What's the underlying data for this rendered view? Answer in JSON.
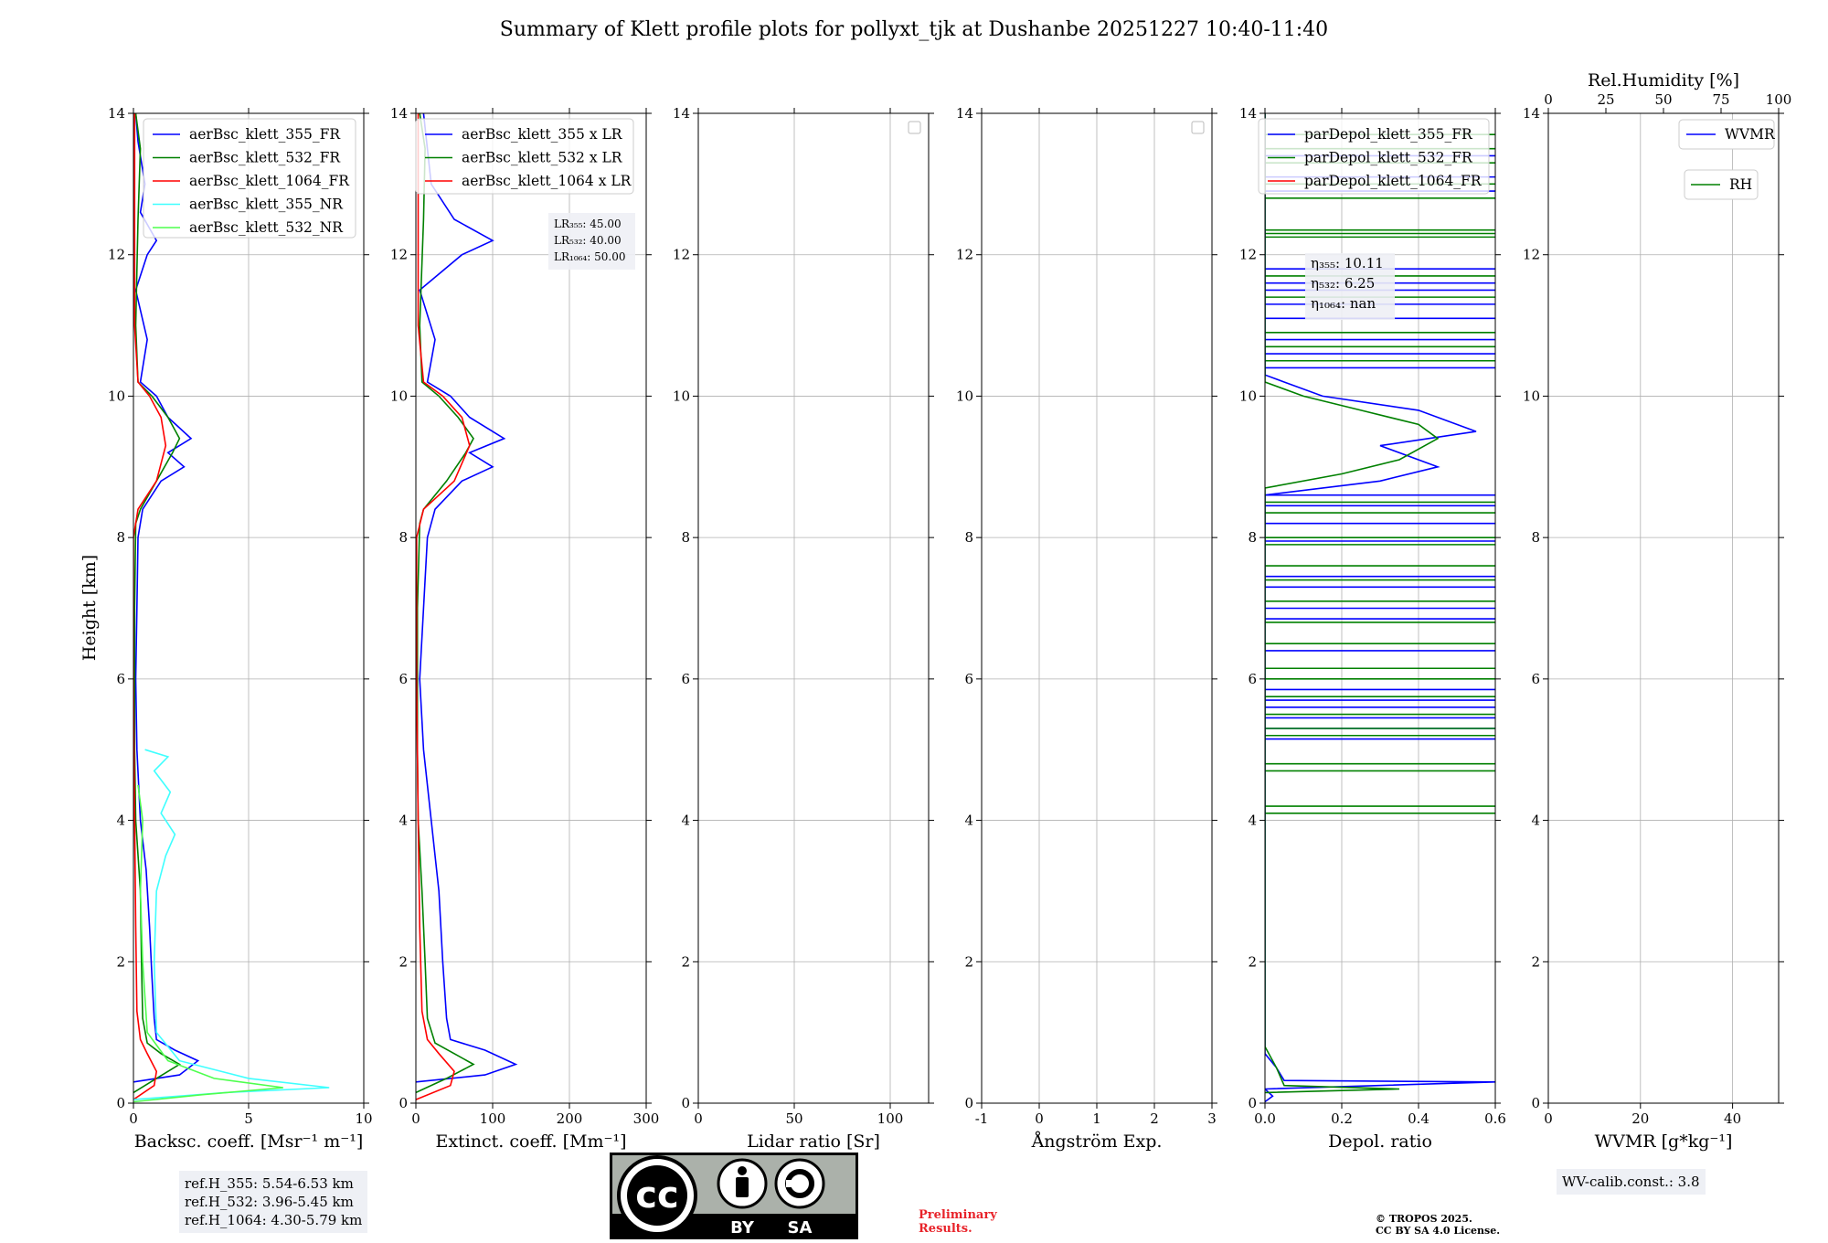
{
  "figure": {
    "title": "Summary of Klett profile plots for pollyxt_tjk at Dushanbe 20251227 10:40-11:40",
    "ylabel": "Height [km]",
    "ref_heights": [
      "ref.H_355: 5.54-6.53 km",
      "ref.H_532: 3.96-5.45 km",
      "ref.H_1064: 4.30-5.79 km"
    ],
    "wv_calib": "WV-calib.const.: 3.8",
    "preliminary": [
      "Preliminary",
      "Results."
    ],
    "copyright": [
      "© TROPOS 2025.",
      "CC BY SA 4.0 License."
    ],
    "license_badge": {
      "cc": "cc",
      "by": "BY",
      "sa": "SA"
    }
  },
  "colors": {
    "b355": "#0000ff",
    "g532": "#008000",
    "r1064": "#ff0000",
    "nr355": "#3fffff",
    "nr532": "#4dff4d",
    "grid": "#b0b0b0"
  },
  "chart_data": [
    {
      "type": "line",
      "title": "",
      "xlabel": "Backsc. coeff. [Msr⁻¹ m⁻¹]",
      "ylabel": "Height [km]",
      "xlim": [
        0,
        10
      ],
      "ylim": [
        0,
        14
      ],
      "xticks": [
        0,
        5,
        10
      ],
      "yticks": [
        0,
        2,
        4,
        6,
        8,
        10,
        12,
        14
      ],
      "legend": [
        "aerBsc_klett_355_FR",
        "aerBsc_klett_532_FR",
        "aerBsc_klett_1064_FR",
        "aerBsc_klett_355_NR",
        "aerBsc_klett_532_NR"
      ],
      "series": [
        {
          "name": "aerBsc_klett_355_FR",
          "color": "b355",
          "points": [
            [
              0,
              0.3
            ],
            [
              2.0,
              0.4
            ],
            [
              2.8,
              0.6
            ],
            [
              1.8,
              0.75
            ],
            [
              1.0,
              0.9
            ],
            [
              0.9,
              1.2
            ],
            [
              0.8,
              1.8
            ],
            [
              0.7,
              2.5
            ],
            [
              0.55,
              3.3
            ],
            [
              0.3,
              4.0
            ],
            [
              0.15,
              5.0
            ],
            [
              0.1,
              6.0
            ],
            [
              0.15,
              7.0
            ],
            [
              0.2,
              8.0
            ],
            [
              0.4,
              8.4
            ],
            [
              1.2,
              8.8
            ],
            [
              2.2,
              9.0
            ],
            [
              1.5,
              9.2
            ],
            [
              2.5,
              9.4
            ],
            [
              1.5,
              9.7
            ],
            [
              1.0,
              10.0
            ],
            [
              0.3,
              10.2
            ],
            [
              0.6,
              10.8
            ],
            [
              0.1,
              11.5
            ],
            [
              0.6,
              12.0
            ],
            [
              1.0,
              12.2
            ],
            [
              0.3,
              12.6
            ],
            [
              0.5,
              13.0
            ],
            [
              0.2,
              13.6
            ],
            [
              0.1,
              14.0
            ]
          ]
        },
        {
          "name": "aerBsc_klett_532_FR",
          "color": "g532",
          "points": [
            [
              0,
              0.15
            ],
            [
              1.0,
              0.35
            ],
            [
              2.0,
              0.55
            ],
            [
              1.2,
              0.7
            ],
            [
              0.6,
              0.85
            ],
            [
              0.4,
              1.2
            ],
            [
              0.35,
              2.0
            ],
            [
              0.3,
              3.0
            ],
            [
              0.1,
              4.0
            ],
            [
              0.05,
              5.0
            ],
            [
              0.05,
              7.0
            ],
            [
              0.1,
              8.2
            ],
            [
              0.3,
              8.4
            ],
            [
              1.0,
              8.8
            ],
            [
              1.7,
              9.2
            ],
            [
              2.0,
              9.4
            ],
            [
              1.5,
              9.7
            ],
            [
              0.8,
              10.0
            ],
            [
              0.2,
              10.2
            ],
            [
              0.1,
              11.0
            ],
            [
              0.2,
              12.5
            ],
            [
              0.3,
              13.5
            ],
            [
              0.1,
              14.0
            ]
          ]
        },
        {
          "name": "aerBsc_klett_1064_FR",
          "color": "r1064",
          "points": [
            [
              0,
              0.05
            ],
            [
              0.9,
              0.25
            ],
            [
              1.0,
              0.45
            ],
            [
              0.6,
              0.7
            ],
            [
              0.3,
              0.9
            ],
            [
              0.15,
              1.3
            ],
            [
              0.1,
              2.5
            ],
            [
              0.05,
              4.0
            ],
            [
              0.0,
              6.0
            ],
            [
              0.0,
              8.0
            ],
            [
              0.2,
              8.4
            ],
            [
              1.0,
              8.8
            ],
            [
              1.4,
              9.3
            ],
            [
              1.2,
              9.7
            ],
            [
              0.7,
              10.0
            ],
            [
              0.2,
              10.2
            ],
            [
              0.05,
              11.0
            ],
            [
              0.05,
              14.0
            ]
          ]
        },
        {
          "name": "aerBsc_klett_355_NR",
          "color": "nr355",
          "points": [
            [
              0,
              0.05
            ],
            [
              4.0,
              0.15
            ],
            [
              8.5,
              0.22
            ],
            [
              5.0,
              0.35
            ],
            [
              2.0,
              0.6
            ],
            [
              1.0,
              1.0
            ],
            [
              0.9,
              2.0
            ],
            [
              1.0,
              3.0
            ],
            [
              1.4,
              3.5
            ],
            [
              1.8,
              3.8
            ],
            [
              1.2,
              4.1
            ],
            [
              1.6,
              4.4
            ],
            [
              0.9,
              4.7
            ],
            [
              1.5,
              4.9
            ],
            [
              0.5,
              5.0
            ]
          ]
        },
        {
          "name": "aerBsc_klett_532_NR",
          "color": "nr532",
          "points": [
            [
              0,
              0.02
            ],
            [
              3.0,
              0.12
            ],
            [
              6.5,
              0.22
            ],
            [
              3.5,
              0.35
            ],
            [
              1.5,
              0.6
            ],
            [
              0.6,
              1.0
            ],
            [
              0.4,
              2.0
            ],
            [
              0.3,
              3.0
            ],
            [
              0.4,
              4.0
            ],
            [
              0.2,
              4.5
            ]
          ]
        }
      ]
    },
    {
      "type": "line",
      "xlabel": "Extinct. coeff. [Mm⁻¹]",
      "ylabel": "",
      "xlim": [
        0,
        300
      ],
      "ylim": [
        0,
        14
      ],
      "xticks": [
        0,
        100,
        200,
        300
      ],
      "yticks": [
        0,
        2,
        4,
        6,
        8,
        10,
        12,
        14
      ],
      "legend": [
        "aerBsc_klett_355 x LR",
        "aerBsc_klett_532 x LR",
        "aerBsc_klett_1064 x LR"
      ],
      "annotation": [
        "LR₃₅₅: 45.00",
        "LR₅₃₂: 40.00",
        "LR₁₀₆₄: 50.00"
      ],
      "series": [
        {
          "name": "aerBsc_klett_355 x LR",
          "color": "b355",
          "points": [
            [
              0,
              0.3
            ],
            [
              90,
              0.4
            ],
            [
              130,
              0.55
            ],
            [
              90,
              0.75
            ],
            [
              45,
              0.9
            ],
            [
              40,
              1.2
            ],
            [
              35,
              2.0
            ],
            [
              30,
              3.0
            ],
            [
              20,
              4.0
            ],
            [
              10,
              5.0
            ],
            [
              5,
              6.0
            ],
            [
              10,
              7.0
            ],
            [
              15,
              8.0
            ],
            [
              25,
              8.4
            ],
            [
              60,
              8.8
            ],
            [
              100,
              9.0
            ],
            [
              70,
              9.2
            ],
            [
              115,
              9.4
            ],
            [
              70,
              9.7
            ],
            [
              45,
              10.0
            ],
            [
              15,
              10.2
            ],
            [
              25,
              10.8
            ],
            [
              5,
              11.5
            ],
            [
              60,
              12.0
            ],
            [
              100,
              12.2
            ],
            [
              50,
              12.5
            ],
            [
              20,
              13.0
            ],
            [
              10,
              14.0
            ]
          ]
        },
        {
          "name": "aerBsc_klett_532 x LR",
          "color": "g532",
          "points": [
            [
              0,
              0.15
            ],
            [
              40,
              0.35
            ],
            [
              75,
              0.55
            ],
            [
              50,
              0.7
            ],
            [
              25,
              0.85
            ],
            [
              15,
              1.2
            ],
            [
              12,
              2.0
            ],
            [
              8,
              3.0
            ],
            [
              3,
              4.0
            ],
            [
              2,
              5.0
            ],
            [
              2,
              7.0
            ],
            [
              5,
              8.2
            ],
            [
              10,
              8.4
            ],
            [
              40,
              8.8
            ],
            [
              65,
              9.2
            ],
            [
              75,
              9.4
            ],
            [
              55,
              9.7
            ],
            [
              30,
              10.0
            ],
            [
              8,
              10.2
            ],
            [
              5,
              11.0
            ],
            [
              10,
              12.5
            ],
            [
              12,
              13.5
            ],
            [
              5,
              14.0
            ]
          ]
        },
        {
          "name": "aerBsc_klett_1064 x LR",
          "color": "r1064",
          "points": [
            [
              0,
              0.05
            ],
            [
              45,
              0.25
            ],
            [
              50,
              0.45
            ],
            [
              30,
              0.7
            ],
            [
              15,
              0.9
            ],
            [
              8,
              1.3
            ],
            [
              5,
              2.5
            ],
            [
              3,
              4.0
            ],
            [
              1,
              6.0
            ],
            [
              1,
              8.0
            ],
            [
              10,
              8.4
            ],
            [
              50,
              8.8
            ],
            [
              70,
              9.3
            ],
            [
              60,
              9.7
            ],
            [
              35,
              10.0
            ],
            [
              10,
              10.2
            ],
            [
              3,
              11.0
            ],
            [
              3,
              14.0
            ]
          ]
        }
      ]
    },
    {
      "type": "line",
      "xlabel": "Lidar ratio [Sr]",
      "xlim": [
        0,
        120
      ],
      "ylim": [
        0,
        14
      ],
      "xticks": [
        0,
        50,
        100
      ],
      "yticks": [
        0,
        2,
        4,
        6,
        8,
        10,
        12,
        14
      ],
      "legend": [],
      "series": []
    },
    {
      "type": "line",
      "xlabel": "Ångström Exp.",
      "xlim": [
        -1,
        3
      ],
      "ylim": [
        0,
        14
      ],
      "xticks": [
        -1,
        0,
        1,
        2,
        3
      ],
      "yticks": [
        0,
        2,
        4,
        6,
        8,
        10,
        12,
        14
      ],
      "legend": [],
      "series": []
    },
    {
      "type": "line",
      "xlabel": "Depol. ratio",
      "xlim": [
        0,
        0.6
      ],
      "ylim": [
        0,
        14
      ],
      "xticks": [
        0.0,
        0.2,
        0.4,
        0.6
      ],
      "yticks": [
        0,
        2,
        4,
        6,
        8,
        10,
        12,
        14
      ],
      "legend": [
        "parDepol_klett_355_FR",
        "parDepol_klett_532_FR",
        "parDepol_klett_1064_FR"
      ],
      "annotation": [
        "η₃₅₅: 10.11",
        "η₅₃₂: 6.25",
        "η₁₀₆₄: nan"
      ],
      "series": [
        {
          "name": "parDepol_klett_355_FR",
          "color": "b355",
          "points": [
            [
              0.0,
              0.02
            ],
            [
              0.02,
              0.1
            ],
            [
              0.0,
              0.2
            ],
            [
              0.6,
              0.3
            ],
            [
              0.05,
              0.32
            ],
            [
              0.03,
              0.5
            ],
            [
              0.0,
              0.7
            ],
            [
              0.0,
              8.6
            ],
            [
              0.3,
              8.8
            ],
            [
              0.45,
              9.0
            ],
            [
              0.3,
              9.3
            ],
            [
              0.55,
              9.5
            ],
            [
              0.4,
              9.8
            ],
            [
              0.15,
              10.0
            ],
            [
              0.05,
              10.2
            ],
            [
              0.0,
              10.3
            ],
            [
              0.0,
              14.0
            ]
          ]
        },
        {
          "name": "parDepol_klett_532_FR",
          "color": "g532",
          "points": [
            [
              0.0,
              0.15
            ],
            [
              0.35,
              0.2
            ],
            [
              0.05,
              0.25
            ],
            [
              0.03,
              0.5
            ],
            [
              0.0,
              0.8
            ],
            [
              0.0,
              8.7
            ],
            [
              0.2,
              8.9
            ],
            [
              0.35,
              9.1
            ],
            [
              0.45,
              9.4
            ],
            [
              0.4,
              9.6
            ],
            [
              0.25,
              9.8
            ],
            [
              0.1,
              10.0
            ],
            [
              0.0,
              10.2
            ],
            [
              0.0,
              14.0
            ]
          ]
        }
      ],
      "spikes": [
        {
          "color": "b355",
          "y": [
            5.15,
            5.3,
            5.45,
            5.6,
            5.7,
            5.85,
            6.4,
            6.85,
            7.0,
            7.3,
            7.45,
            7.95,
            8.2,
            8.45,
            8.6,
            10.4,
            10.6,
            10.8,
            11.1,
            11.3,
            11.5,
            11.6,
            11.8,
            12.9,
            13.1,
            13.4
          ]
        },
        {
          "color": "g532",
          "y": [
            4.1,
            4.2,
            4.7,
            4.8,
            5.2,
            5.3,
            5.5,
            5.75,
            6.0,
            6.15,
            6.5,
            6.8,
            7.1,
            7.4,
            7.6,
            7.9,
            8.0,
            8.35,
            8.5,
            10.5,
            10.7,
            10.9,
            11.4,
            11.7,
            12.25,
            12.3,
            12.35,
            12.8,
            13.0,
            13.3,
            13.5,
            13.7
          ]
        }
      ]
    },
    {
      "type": "line",
      "xlabel": "WVMR [g*kg⁻¹]",
      "x2label": "Rel.Humidity [%]",
      "xlim": [
        0,
        50
      ],
      "x2lim": [
        0,
        100
      ],
      "ylim": [
        0,
        14
      ],
      "xticks": [
        0,
        20,
        40
      ],
      "x2ticks": [
        0,
        25,
        50,
        75,
        100
      ],
      "yticks": [
        0,
        2,
        4,
        6,
        8,
        10,
        12,
        14
      ],
      "legend": [
        "WVMR",
        "RH"
      ],
      "series": []
    }
  ]
}
